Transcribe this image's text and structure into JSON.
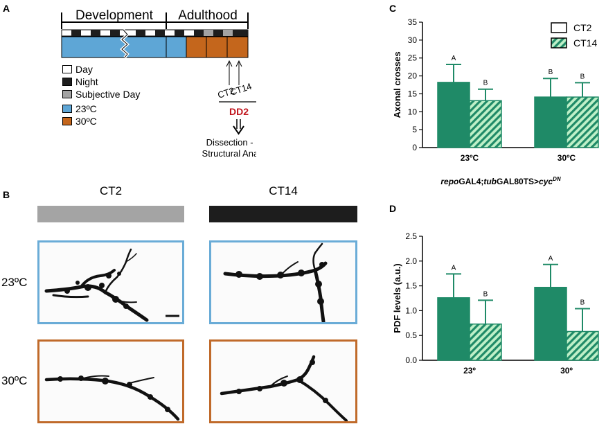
{
  "colors": {
    "day": "#ffffff",
    "night": "#1e1e1e",
    "subjective_day": "#a3a3a3",
    "temp_23": "#5ea6d6",
    "temp_30": "#c4661c",
    "bar_solid": "#1f8a67",
    "bar_hatch_stroke": "#1f8a67",
    "bar_hatch_fill": "#bff0c8",
    "ann_red": "#c0141c",
    "frame_blue": "#6aacd7",
    "frame_orange": "#c06a2a",
    "ct2_bar": "#a4a4a4",
    "ct14_bar": "#1d1d1d"
  },
  "panel_a": {
    "letter": "A",
    "phase_labels": [
      "Development",
      "Adulthood"
    ],
    "legend": [
      {
        "key": "day",
        "label": "Day"
      },
      {
        "key": "night",
        "label": "Night"
      },
      {
        "key": "subjective_day",
        "label": "Subjective Day"
      },
      {
        "key": "temp_23",
        "label": "23ºC"
      },
      {
        "key": "temp_30",
        "label": "30ºC"
      }
    ],
    "timepoints": [
      "CT2",
      "CT14"
    ],
    "dd_label": "DD2",
    "outcome_lines": [
      "Dissection - IHQ",
      "Structural Analysis"
    ]
  },
  "panel_b": {
    "letter": "B",
    "column_labels": [
      "CT2",
      "CT14"
    ],
    "row_labels": [
      "23ºC",
      "30ºC"
    ],
    "icons": [
      "neuron-image-icon"
    ]
  },
  "chart_data": [
    {
      "panel": "C",
      "type": "bar",
      "categories": [
        "23ºC",
        "30ºC"
      ],
      "series": [
        {
          "name": "CT2",
          "style": "solid",
          "values": [
            18.2,
            14.1
          ],
          "errors": [
            5.0,
            5.2
          ],
          "letters": [
            "A",
            "B"
          ]
        },
        {
          "name": "CT14",
          "style": "hatched",
          "values": [
            13.1,
            14.1
          ],
          "errors": [
            3.2,
            4.0
          ],
          "letters": [
            "B",
            "B"
          ]
        }
      ],
      "ylabel": "Axonal crosses",
      "xlabel": "repoGAL4;tubGAL80TS>cycDN",
      "xlabel_parts": {
        "italic1": "repo",
        "plain1": "GAL4;",
        "italic2": "tub",
        "plain2": "GAL80TS>",
        "italic3": "cyc",
        "sup": "DN"
      },
      "ylim": [
        0,
        35
      ],
      "yticks": [
        "0",
        "5",
        "10",
        "15",
        "20",
        "25",
        "30",
        "35"
      ],
      "legend": [
        "CT2",
        "CT14"
      ]
    },
    {
      "panel": "D",
      "type": "bar",
      "categories": [
        "23º",
        "30º"
      ],
      "series": [
        {
          "name": "CT2",
          "style": "solid",
          "values": [
            1.26,
            1.47
          ],
          "errors": [
            0.48,
            0.46
          ],
          "letters": [
            "A",
            "A"
          ]
        },
        {
          "name": "CT14",
          "style": "hatched",
          "values": [
            0.73,
            0.58
          ],
          "errors": [
            0.48,
            0.46
          ],
          "letters": [
            "B",
            "B"
          ]
        }
      ],
      "ylabel": "PDF levels (a.u.)",
      "xlabel": "",
      "ylim": [
        0,
        2.5
      ],
      "yticks": [
        "0.0",
        "0.5",
        "1.0",
        "1.5",
        "2.0",
        "2.5"
      ]
    }
  ]
}
